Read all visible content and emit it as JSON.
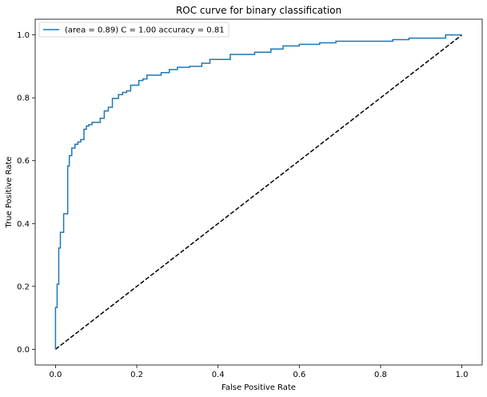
{
  "chart_data": {
    "type": "line",
    "title": "ROC curve for binary classification",
    "xlabel": "False Positive Rate",
    "ylabel": "True Positive Rate",
    "xlim": [
      -0.05,
      1.05
    ],
    "ylim": [
      -0.05,
      1.05
    ],
    "xticks": [
      0.0,
      0.2,
      0.4,
      0.6,
      0.8,
      1.0
    ],
    "yticks": [
      0.0,
      0.2,
      0.4,
      0.6,
      0.8,
      1.0
    ],
    "xtick_labels": [
      "0.0",
      "0.2",
      "0.4",
      "0.6",
      "0.8",
      "1.0"
    ],
    "ytick_labels": [
      "0.0",
      "0.2",
      "0.4",
      "0.6",
      "0.8",
      "1.0"
    ],
    "grid": false,
    "legend_position": "upper left",
    "series": [
      {
        "name": "(area = 0.89) C = 1.00 accuracy = 0.81",
        "color": "#1f77b4",
        "style": "solid",
        "x": [
          0.0,
          0.0,
          0.004,
          0.004,
          0.008,
          0.008,
          0.012,
          0.012,
          0.02,
          0.02,
          0.03,
          0.03,
          0.034,
          0.034,
          0.04,
          0.04,
          0.048,
          0.048,
          0.055,
          0.055,
          0.062,
          0.062,
          0.07,
          0.07,
          0.076,
          0.076,
          0.082,
          0.082,
          0.09,
          0.09,
          0.11,
          0.11,
          0.12,
          0.12,
          0.13,
          0.13,
          0.14,
          0.14,
          0.155,
          0.155,
          0.165,
          0.165,
          0.175,
          0.175,
          0.185,
          0.185,
          0.205,
          0.205,
          0.215,
          0.215,
          0.225,
          0.225,
          0.26,
          0.26,
          0.28,
          0.28,
          0.3,
          0.3,
          0.33,
          0.33,
          0.36,
          0.36,
          0.38,
          0.38,
          0.43,
          0.43,
          0.49,
          0.49,
          0.53,
          0.53,
          0.56,
          0.56,
          0.6,
          0.6,
          0.65,
          0.65,
          0.69,
          0.69,
          0.83,
          0.83,
          0.87,
          0.87,
          0.96,
          0.96,
          1.0
        ],
        "y": [
          0.0,
          0.133,
          0.133,
          0.207,
          0.207,
          0.322,
          0.322,
          0.372,
          0.372,
          0.431,
          0.431,
          0.583,
          0.583,
          0.616,
          0.616,
          0.64,
          0.64,
          0.652,
          0.652,
          0.659,
          0.659,
          0.667,
          0.667,
          0.7,
          0.7,
          0.71,
          0.71,
          0.715,
          0.715,
          0.722,
          0.722,
          0.735,
          0.735,
          0.758,
          0.758,
          0.77,
          0.77,
          0.798,
          0.798,
          0.81,
          0.81,
          0.817,
          0.817,
          0.822,
          0.822,
          0.84,
          0.84,
          0.855,
          0.855,
          0.86,
          0.86,
          0.872,
          0.872,
          0.88,
          0.88,
          0.89,
          0.89,
          0.897,
          0.897,
          0.9,
          0.9,
          0.91,
          0.91,
          0.922,
          0.922,
          0.938,
          0.938,
          0.945,
          0.945,
          0.955,
          0.955,
          0.965,
          0.965,
          0.97,
          0.97,
          0.975,
          0.975,
          0.98,
          0.98,
          0.985,
          0.985,
          0.99,
          0.99,
          1.0,
          1.0
        ]
      },
      {
        "color": "#000000",
        "style": "dashed",
        "x": [
          0.0,
          1.0
        ],
        "y": [
          0.0,
          1.0
        ]
      }
    ]
  }
}
